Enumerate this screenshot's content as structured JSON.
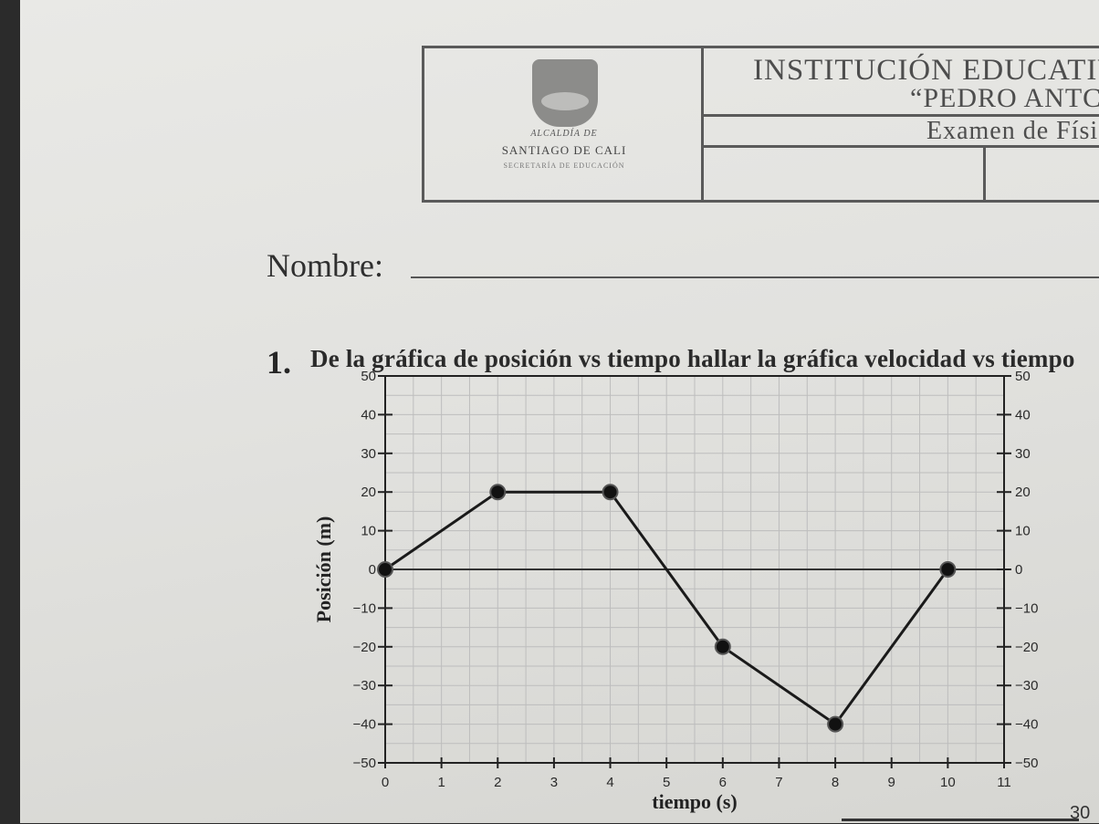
{
  "header": {
    "logo_line1": "ALCALDÍA DE",
    "logo_line2": "SANTIAGO DE CALI",
    "logo_line3": "SECRETARÍA DE EDUCACIÓN",
    "institution_title": "INSTITUCIÓN EDUCATIV",
    "institution_name": "“PEDRO ANTC",
    "exam_title": "Examen de Físi"
  },
  "form": {
    "nombre_label": "Nombre:"
  },
  "question": {
    "number": "1.",
    "text": "De la gráfica de posición vs tiempo hallar la gráfica velocidad vs tiempo"
  },
  "page_number": "30",
  "chart_data": {
    "type": "line",
    "title": "",
    "xlabel": "tiempo (s)",
    "ylabel": "Posición (m)",
    "xlim": [
      0,
      11
    ],
    "ylim": [
      -50,
      50
    ],
    "x_ticks": [
      0,
      1,
      2,
      3,
      4,
      5,
      6,
      7,
      8,
      9,
      10,
      11
    ],
    "y_ticks_left": [
      50,
      40,
      30,
      20,
      10,
      0,
      -10,
      -20,
      -30,
      -40,
      -50
    ],
    "y_ticks_right": [
      50,
      40,
      30,
      20,
      10,
      0,
      -10,
      -20,
      -30,
      -40,
      -50
    ],
    "grid": true,
    "series": [
      {
        "x": [
          0,
          2,
          4,
          6,
          8,
          10
        ],
        "y": [
          0,
          20,
          20,
          -20,
          -40,
          0
        ]
      }
    ],
    "colors": {
      "line": "#1a1a1a",
      "grid": "#bdbdbd",
      "marker": "#111111"
    }
  }
}
